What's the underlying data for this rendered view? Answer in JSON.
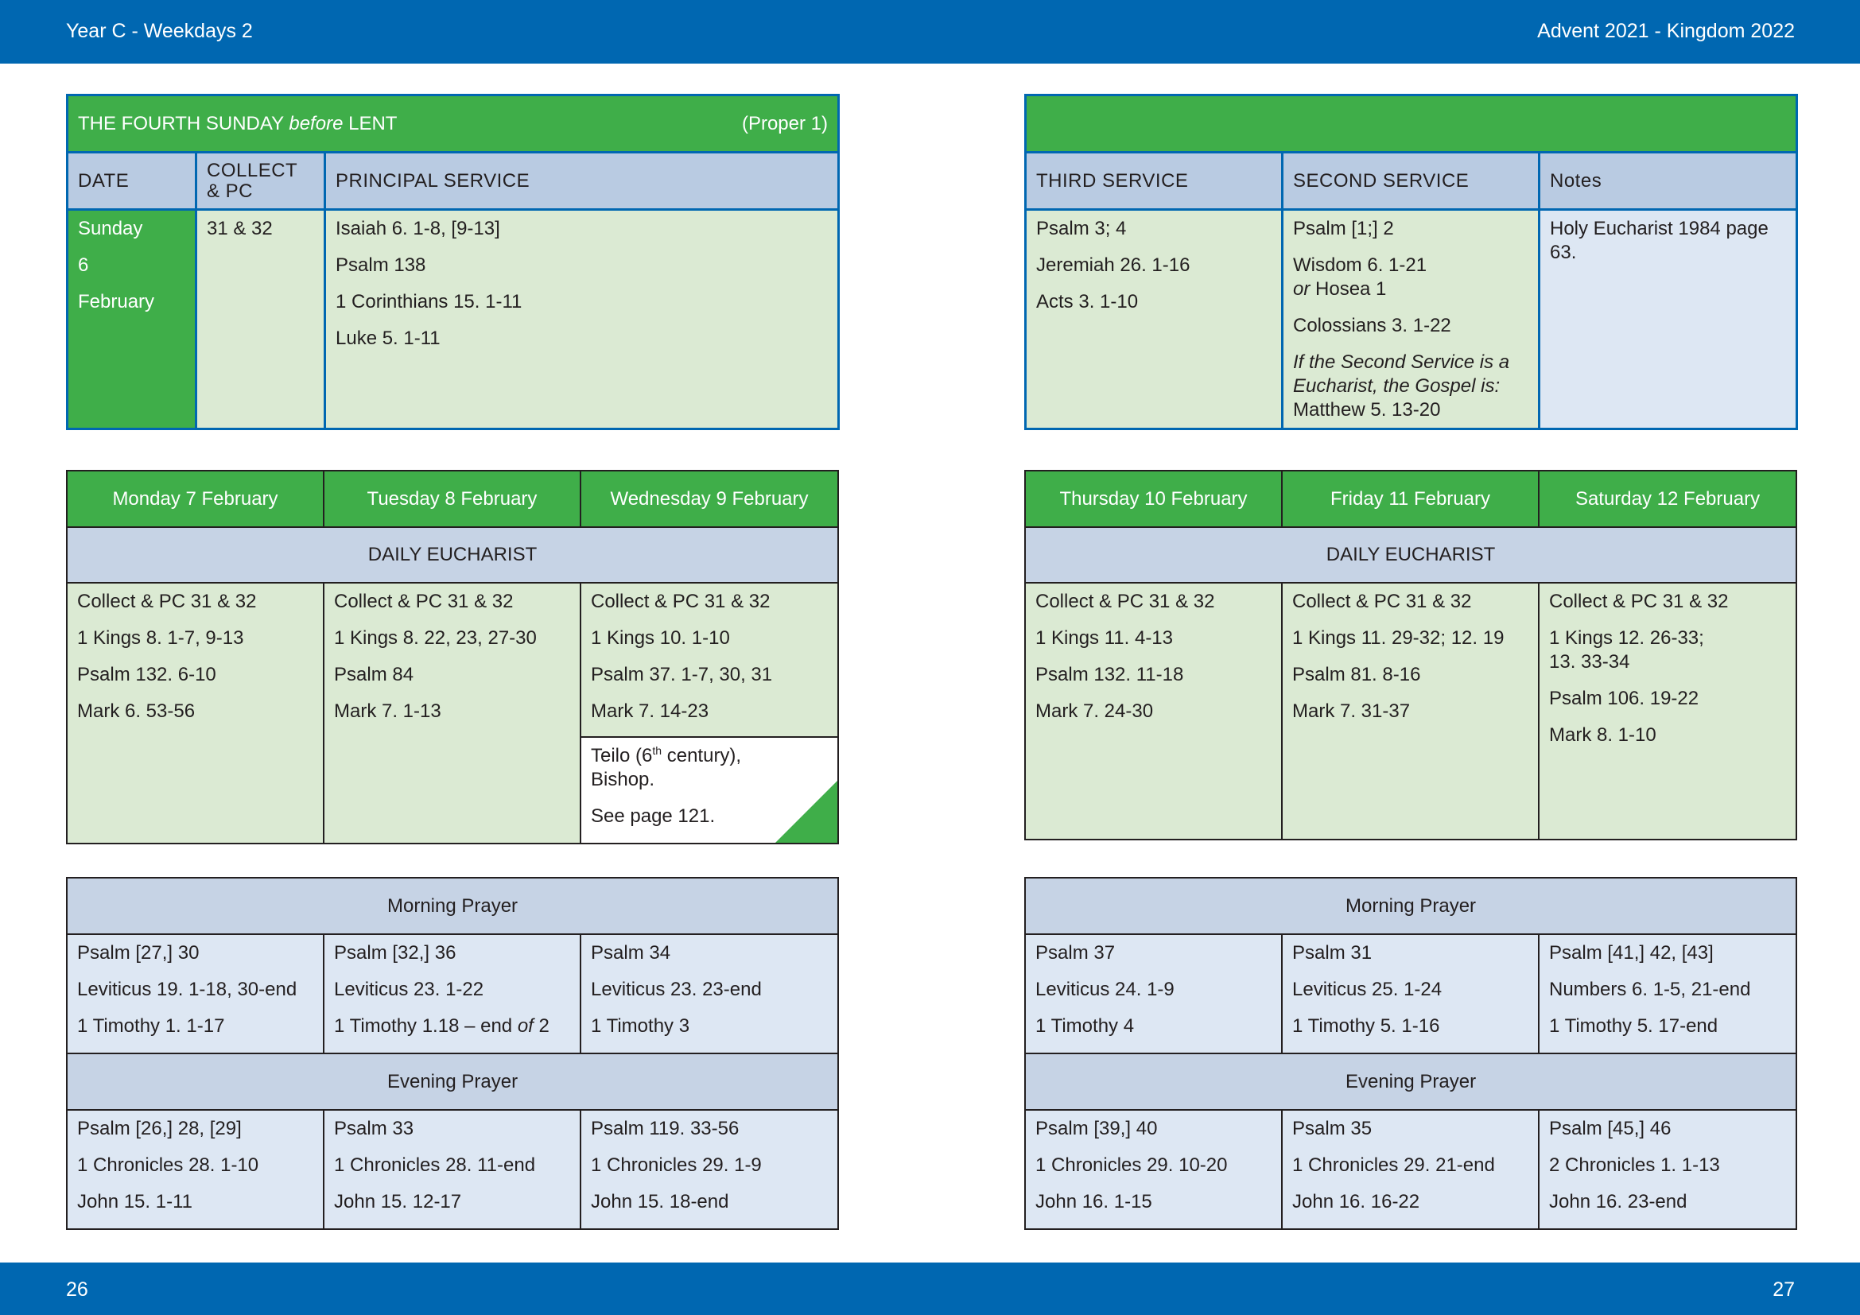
{
  "header": {
    "left": "Year C - Weekdays 2",
    "right": "Advent  2021 - Kingdom 2022"
  },
  "footer": {
    "left_page": "26",
    "right_page": "27"
  },
  "sunday": {
    "title_before": "THE FOURTH SUNDAY ",
    "title_italic": "before",
    "title_after": " LENT",
    "proper": "(Proper 1)",
    "col_date": "DATE",
    "col_collect_1": "COLLECT",
    "col_collect_2": "& PC",
    "col_principal": "PRINCIPAL SERVICE",
    "date": [
      "Sunday",
      "6",
      "February"
    ],
    "collect": "31 & 32",
    "principal": [
      "Isaiah 6. 1-8, [9-13]",
      "Psalm 138",
      "1 Corinthians 15. 1-11",
      "Luke 5. 1-11"
    ],
    "col_third": "THIRD SERVICE",
    "col_second": "SECOND SERVICE",
    "col_notes": "Notes",
    "third": [
      "Psalm 3;  4",
      "Jeremiah 26. 1-16",
      "Acts 3. 1-10"
    ],
    "second_psalm": "Psalm [1;] 2",
    "second_ot_1": "Wisdom 6. 1-21",
    "second_ot_or": "or",
    "second_ot_2": " Hosea 1",
    "second_nt": "Colossians 3. 1-22",
    "second_note": "If the Second Service is a Eucharist, the Gospel is:",
    "second_gospel": "Matthew 5. 13-20",
    "notes": "Holy Eucharist 1984 page 63."
  },
  "daily_eucharist_label": "DAILY EUCHARIST",
  "left_days": [
    "Monday 7 February",
    "Tuesday 8 February",
    "Wednesday 9 February"
  ],
  "right_days": [
    "Thursday 10 February",
    "Friday 11 February",
    "Saturday 12 February"
  ],
  "euch_left": [
    [
      "Collect & PC 31 & 32",
      "1 Kings 8. 1-7, 9-13",
      "Psalm 132. 6-10",
      "Mark 6. 53-56"
    ],
    [
      "Collect & PC 31 & 32",
      "1 Kings 8. 22, 23, 27-30",
      "Psalm 84",
      "Mark 7. 1-13"
    ],
    [
      "Collect & PC 31 & 32",
      "1 Kings 10. 1-10",
      "Psalm 37. 1-7, 30, 31",
      "Mark 7. 14-23"
    ]
  ],
  "commemoration": {
    "name_pre": "Teilo (6",
    "sup": "th",
    "name_post": " century),",
    "role": "Bishop.",
    "ref": "See page 121."
  },
  "euch_right": [
    [
      "Collect & PC 31 & 32",
      "1 Kings 11. 4-13",
      "Psalm 132. 11-18",
      "Mark 7. 24-30"
    ],
    [
      "Collect & PC 31 & 32",
      "1 Kings 11. 29-32; 12. 19",
      "Psalm 81. 8-16",
      "Mark 7. 31-37"
    ],
    [
      "Collect & PC 31 & 32",
      "1 Kings 12. 26-33; 13. 33-34",
      "Psalm 106. 19-22",
      "Mark 8. 1-10"
    ]
  ],
  "morning_label": "Morning Prayer",
  "evening_label": "Evening Prayer",
  "mp_left": [
    [
      "Psalm [27,] 30",
      "Leviticus 19. 1-18, 30-end",
      "1 Timothy 1. 1-17"
    ],
    [
      "Psalm [32,] 36",
      "Leviticus 23. 1-22",
      "1 Timothy 1.18 – end "
    ],
    [
      "Psalm 34",
      "Leviticus 23. 23-end",
      "1 Timothy 3"
    ]
  ],
  "mp_left_of": "of",
  "mp_left_tail": " 2",
  "ep_left": [
    [
      "Psalm [26,] 28, [29]",
      "1 Chronicles 28. 1-10",
      "John 15. 1-11"
    ],
    [
      "Psalm 33",
      "1 Chronicles 28. 11-end",
      "John 15. 12-17"
    ],
    [
      "Psalm 119. 33-56",
      "1 Chronicles 29. 1-9",
      "John 15. 18-end"
    ]
  ],
  "mp_right": [
    [
      "Psalm 37",
      "Leviticus 24. 1-9",
      "1 Timothy 4"
    ],
    [
      "Psalm 31",
      "Leviticus 25. 1-24",
      "1 Timothy 5. 1-16"
    ],
    [
      "Psalm [41,] 42, [43]",
      "Numbers 6. 1-5, 21-end",
      "1 Timothy 5. 17-end"
    ]
  ],
  "ep_right": [
    [
      "Psalm [39,] 40",
      "1 Chronicles 29. 10-20",
      "John 16. 1-15"
    ],
    [
      "Psalm 35",
      "1 Chronicles 29. 21-end",
      "John 16. 16-22"
    ],
    [
      "Psalm [45,] 46",
      "2 Chronicles 1. 1-13",
      "John 16. 23-end"
    ]
  ],
  "colors": {
    "blue_band": "#0067b1",
    "green": "#3fae49",
    "light_green": "#dbead3",
    "light_blue": "#dde7f3",
    "header_blue": "#b9cbe2"
  }
}
